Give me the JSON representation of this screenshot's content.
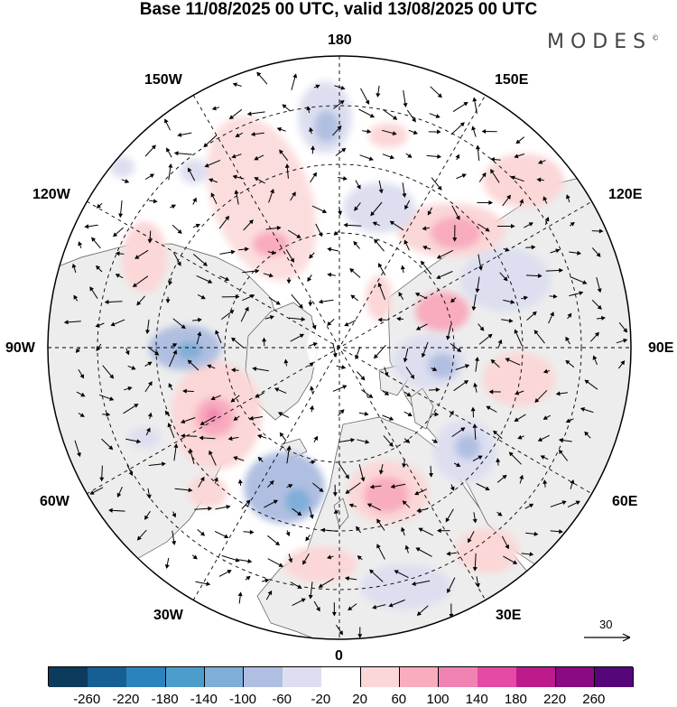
{
  "title": "Base 11/08/2025 00 UTC, valid 13/08/2025 00 UTC",
  "brand": "MODES",
  "brand_mark": "©",
  "longitude_labels": {
    "top": "180",
    "bottom": "0",
    "left": "90W",
    "right": "90E",
    "upper_left_1": "150W",
    "upper_left_2": "120W",
    "upper_right_1": "150E",
    "upper_right_2": "120E",
    "lower_left_1": "60W",
    "lower_left_2": "30W",
    "lower_right_1": "60E",
    "lower_right_2": "30E"
  },
  "reference_vector": {
    "value": "30",
    "icon": "arrow-right-icon"
  },
  "colorbar": {
    "colors": [
      "#0c3b5e",
      "#165f92",
      "#2a83bd",
      "#4d9dcc",
      "#7faed8",
      "#b0bfe1",
      "#dddff0",
      "#ffffff",
      "#fbd7d7",
      "#f8acbe",
      "#f083b1",
      "#e54aa4",
      "#bd1a8c",
      "#8a0a82",
      "#55077a"
    ],
    "tick_labels": [
      "-260",
      "-220",
      "-180",
      "-140",
      "-100",
      "-60",
      "-20",
      "20",
      "60",
      "100",
      "140",
      "180",
      "220",
      "260"
    ]
  }
}
